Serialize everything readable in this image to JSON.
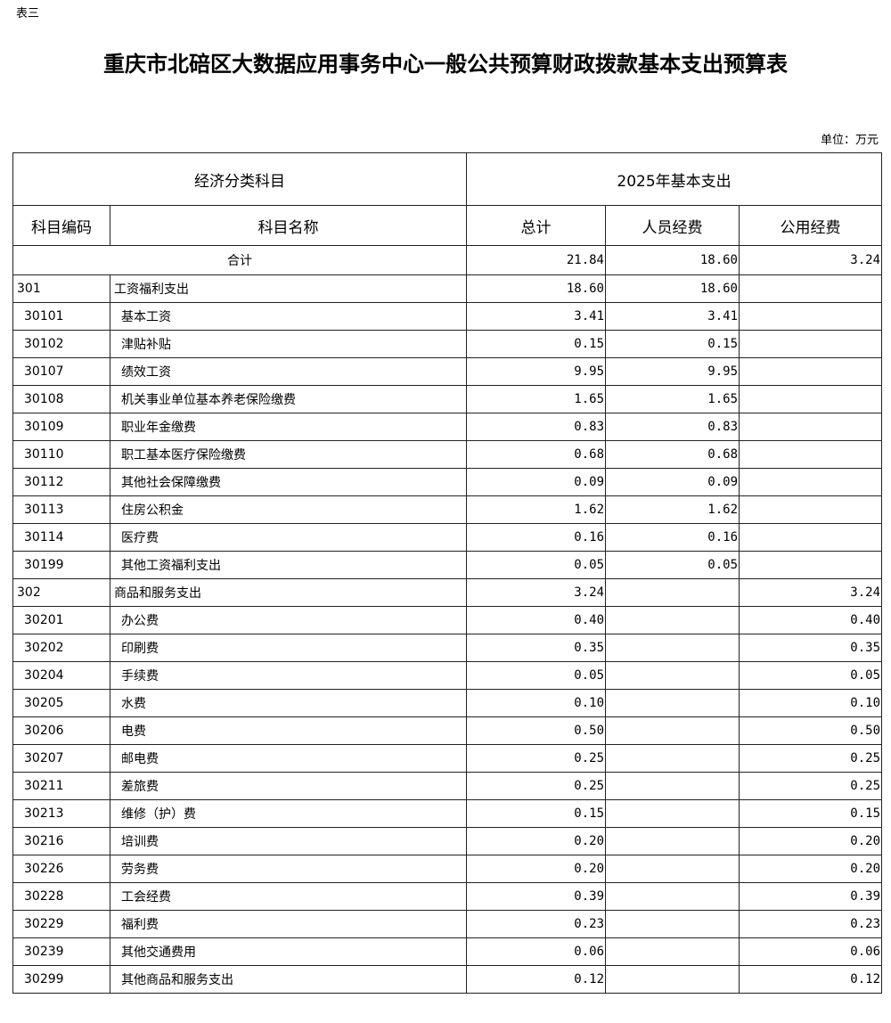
{
  "doc_label": "表三",
  "title": "重庆市北碚区大数据应用事务中心一般公共预算财政拨款基本支出预算表",
  "unit": "单位：万元",
  "header": {
    "group1": "经济分类科目",
    "group2": "2025年基本支出",
    "code": "科目编码",
    "name": "科目名称",
    "total": "总计",
    "personnel": "人员经费",
    "public": "公用经费"
  },
  "total_row": {
    "label": "合计",
    "total": "21.84",
    "personnel": "18.60",
    "public": "3.24"
  },
  "rows": [
    {
      "code": "301",
      "name": "工资福利支出",
      "total": "18.60",
      "personnel": "18.60",
      "public": "",
      "level": 1
    },
    {
      "code": "30101",
      "name": "基本工资",
      "total": "3.41",
      "personnel": "3.41",
      "public": "",
      "level": 2
    },
    {
      "code": "30102",
      "name": "津贴补贴",
      "total": "0.15",
      "personnel": "0.15",
      "public": "",
      "level": 2
    },
    {
      "code": "30107",
      "name": "绩效工资",
      "total": "9.95",
      "personnel": "9.95",
      "public": "",
      "level": 2
    },
    {
      "code": "30108",
      "name": "机关事业单位基本养老保险缴费",
      "total": "1.65",
      "personnel": "1.65",
      "public": "",
      "level": 2
    },
    {
      "code": "30109",
      "name": "职业年金缴费",
      "total": "0.83",
      "personnel": "0.83",
      "public": "",
      "level": 2
    },
    {
      "code": "30110",
      "name": "职工基本医疗保险缴费",
      "total": "0.68",
      "personnel": "0.68",
      "public": "",
      "level": 2
    },
    {
      "code": "30112",
      "name": "其他社会保障缴费",
      "total": "0.09",
      "personnel": "0.09",
      "public": "",
      "level": 2
    },
    {
      "code": "30113",
      "name": "住房公积金",
      "total": "1.62",
      "personnel": "1.62",
      "public": "",
      "level": 2
    },
    {
      "code": "30114",
      "name": "医疗费",
      "total": "0.16",
      "personnel": "0.16",
      "public": "",
      "level": 2
    },
    {
      "code": "30199",
      "name": "其他工资福利支出",
      "total": "0.05",
      "personnel": "0.05",
      "public": "",
      "level": 2
    },
    {
      "code": "302",
      "name": "商品和服务支出",
      "total": "3.24",
      "personnel": "",
      "public": "3.24",
      "level": 1
    },
    {
      "code": "30201",
      "name": "办公费",
      "total": "0.40",
      "personnel": "",
      "public": "0.40",
      "level": 2
    },
    {
      "code": "30202",
      "name": "印刷费",
      "total": "0.35",
      "personnel": "",
      "public": "0.35",
      "level": 2
    },
    {
      "code": "30204",
      "name": "手续费",
      "total": "0.05",
      "personnel": "",
      "public": "0.05",
      "level": 2
    },
    {
      "code": "30205",
      "name": "水费",
      "total": "0.10",
      "personnel": "",
      "public": "0.10",
      "level": 2
    },
    {
      "code": "30206",
      "name": "电费",
      "total": "0.50",
      "personnel": "",
      "public": "0.50",
      "level": 2
    },
    {
      "code": "30207",
      "name": "邮电费",
      "total": "0.25",
      "personnel": "",
      "public": "0.25",
      "level": 2
    },
    {
      "code": "30211",
      "name": "差旅费",
      "total": "0.25",
      "personnel": "",
      "public": "0.25",
      "level": 2
    },
    {
      "code": "30213",
      "name": "维修（护）费",
      "total": "0.15",
      "personnel": "",
      "public": "0.15",
      "level": 2
    },
    {
      "code": "30216",
      "name": "培训费",
      "total": "0.20",
      "personnel": "",
      "public": "0.20",
      "level": 2
    },
    {
      "code": "30226",
      "name": "劳务费",
      "total": "0.20",
      "personnel": "",
      "public": "0.20",
      "level": 2
    },
    {
      "code": "30228",
      "name": "工会经费",
      "total": "0.39",
      "personnel": "",
      "public": "0.39",
      "level": 2
    },
    {
      "code": "30229",
      "name": "福利费",
      "total": "0.23",
      "personnel": "",
      "public": "0.23",
      "level": 2
    },
    {
      "code": "30239",
      "name": "其他交通费用",
      "total": "0.06",
      "personnel": "",
      "public": "0.06",
      "level": 2
    },
    {
      "code": "30299",
      "name": "其他商品和服务支出",
      "total": "0.12",
      "personnel": "",
      "public": "0.12",
      "level": 2
    }
  ]
}
